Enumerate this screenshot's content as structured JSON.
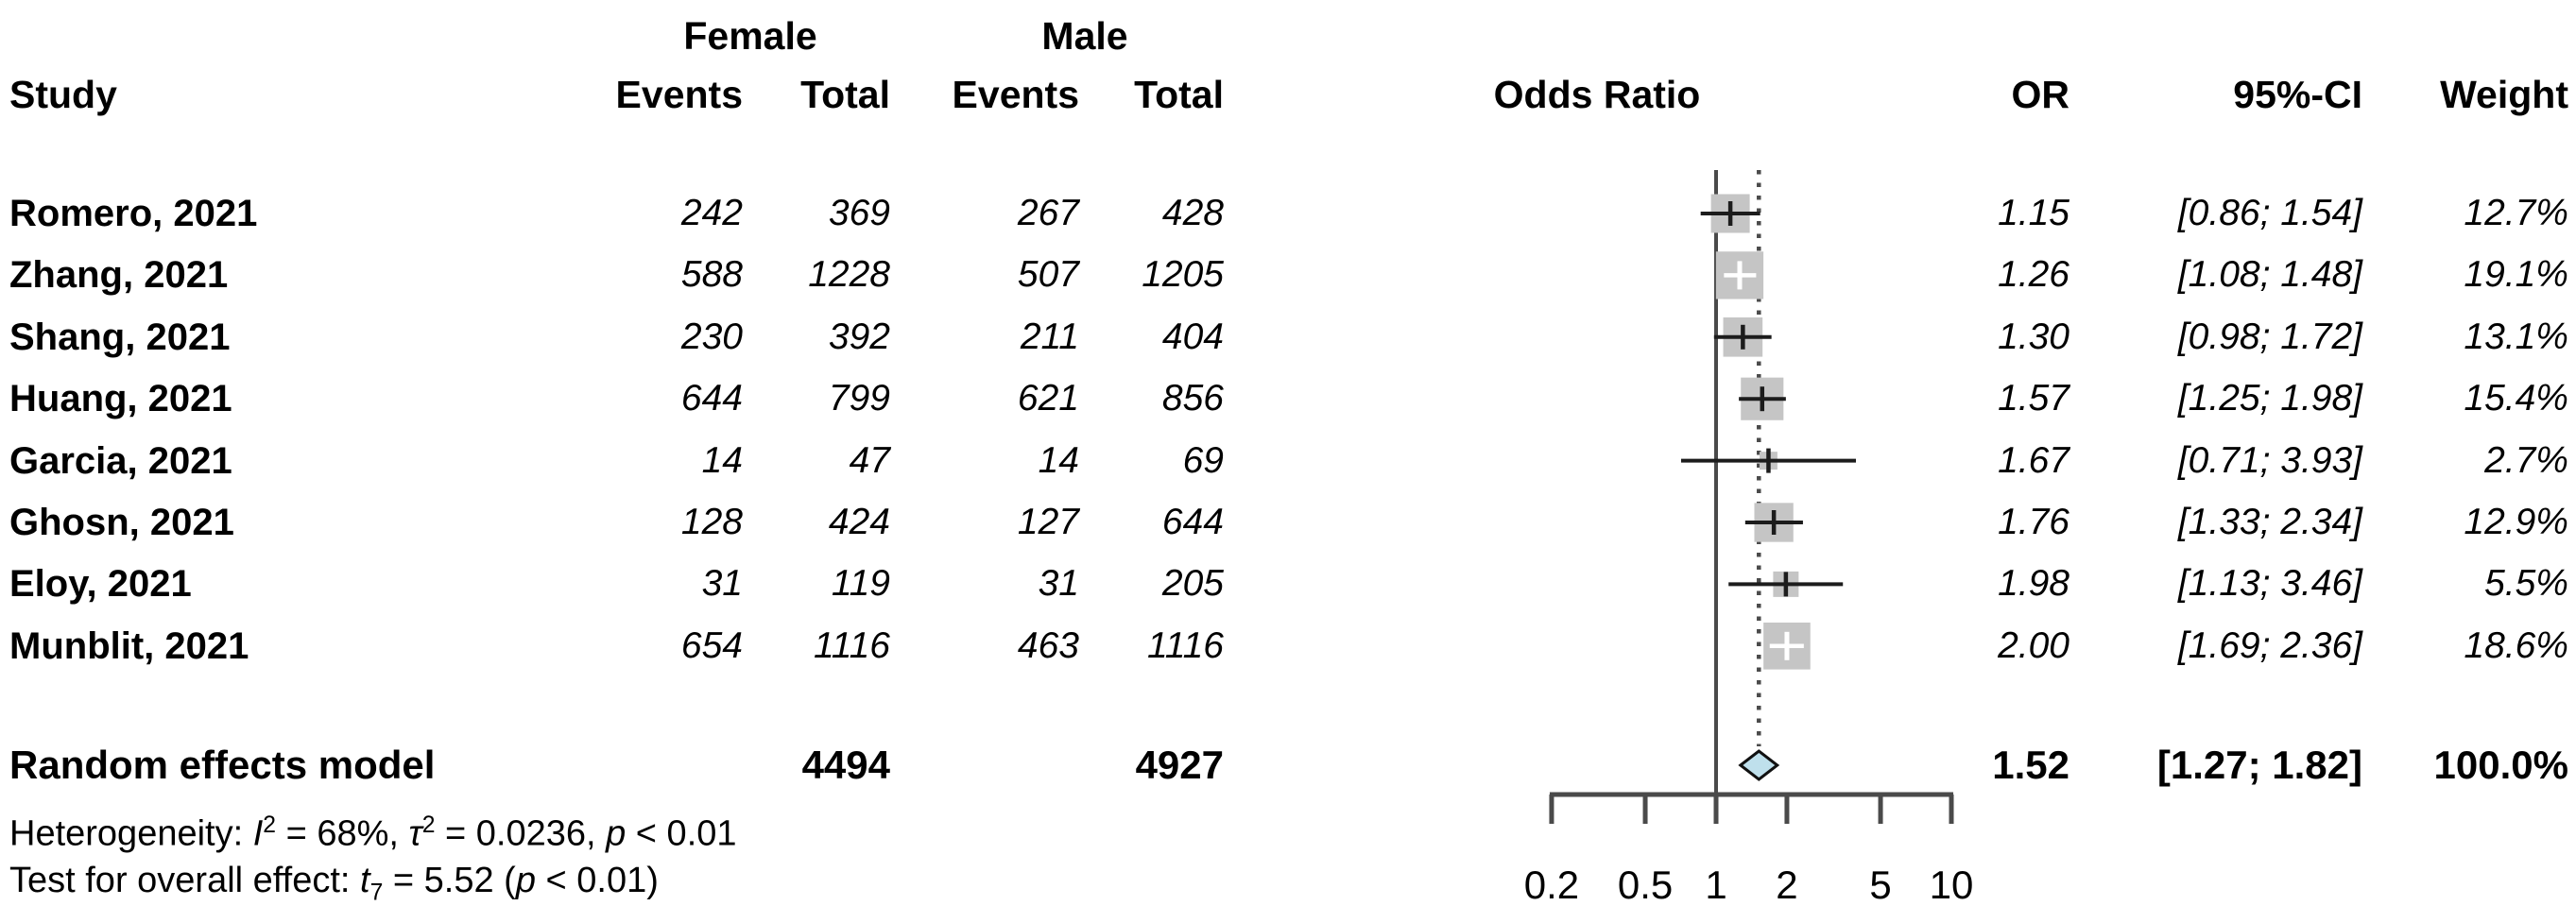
{
  "header": {
    "study": "Study",
    "group_female": "Female",
    "group_male": "Male",
    "events": "Events",
    "total": "Total",
    "plot_title": "Odds Ratio",
    "or": "OR",
    "ci": "95%-CI",
    "weight": "Weight"
  },
  "table": {
    "rows": [
      {
        "name": "Romero, 2021",
        "f_events": "242",
        "f_total": "369",
        "m_events": "267",
        "m_total": "428",
        "or": "1.15",
        "ci": "[0.86; 1.54]",
        "weight": "12.7%"
      },
      {
        "name": "Zhang, 2021",
        "f_events": "588",
        "f_total": "1228",
        "m_events": "507",
        "m_total": "1205",
        "or": "1.26",
        "ci": "[1.08; 1.48]",
        "weight": "19.1%"
      },
      {
        "name": "Shang, 2021",
        "f_events": "230",
        "f_total": "392",
        "m_events": "211",
        "m_total": "404",
        "or": "1.30",
        "ci": "[0.98; 1.72]",
        "weight": "13.1%"
      },
      {
        "name": "Huang, 2021",
        "f_events": "644",
        "f_total": "799",
        "m_events": "621",
        "m_total": "856",
        "or": "1.57",
        "ci": "[1.25; 1.98]",
        "weight": "15.4%"
      },
      {
        "name": "Garcia, 2021",
        "f_events": "14",
        "f_total": "47",
        "m_events": "14",
        "m_total": "69",
        "or": "1.67",
        "ci": "[0.71; 3.93]",
        "weight": "2.7%"
      },
      {
        "name": "Ghosn, 2021",
        "f_events": "128",
        "f_total": "424",
        "m_events": "127",
        "m_total": "644",
        "or": "1.76",
        "ci": "[1.33; 2.34]",
        "weight": "12.9%"
      },
      {
        "name": "Eloy, 2021",
        "f_events": "31",
        "f_total": "119",
        "m_events": "31",
        "m_total": "205",
        "or": "1.98",
        "ci": "[1.13; 3.46]",
        "weight": "5.5%"
      },
      {
        "name": "Munblit, 2021",
        "f_events": "654",
        "f_total": "1116",
        "m_events": "463",
        "m_total": "1116",
        "or": "2.00",
        "ci": "[1.69; 2.36]",
        "weight": "18.6%"
      }
    ]
  },
  "summary": {
    "label": "Random effects model",
    "f_total": "4494",
    "m_total": "4927",
    "or": "1.52",
    "ci": "[1.27; 1.82]",
    "weight": "100.0%"
  },
  "footnotes": {
    "het_prefix": "Heterogeneity: ",
    "het_i": "I",
    "het_i_sup": "2",
    "het_mid1": " = 68%, ",
    "het_tau": "τ",
    "het_tau_sup": "2",
    "het_mid2": " = 0.0236, ",
    "het_p": "p",
    "het_tail": " < 0.01",
    "test_prefix": "Test for overall effect: ",
    "test_t": "t",
    "test_t_sub": "7",
    "test_mid": " = 5.52 (",
    "test_p": "p",
    "test_tail": " < 0.01)"
  },
  "chart_data": {
    "type": "forest",
    "x_scale": "log",
    "xlim": [
      0.2,
      10
    ],
    "ticks": [
      0.2,
      0.5,
      1,
      2,
      5,
      10
    ],
    "tick_labels": [
      "0.2",
      "0.5",
      "1",
      "2",
      "5",
      "10"
    ],
    "reference_line": 1,
    "summary_line": 1.52,
    "studies": [
      {
        "name": "Romero, 2021",
        "or": 1.15,
        "lo": 0.86,
        "hi": 1.54,
        "weight": 12.7
      },
      {
        "name": "Zhang, 2021",
        "or": 1.26,
        "lo": 1.08,
        "hi": 1.48,
        "weight": 19.1
      },
      {
        "name": "Shang, 2021",
        "or": 1.3,
        "lo": 0.98,
        "hi": 1.72,
        "weight": 13.1
      },
      {
        "name": "Huang, 2021",
        "or": 1.57,
        "lo": 1.25,
        "hi": 1.98,
        "weight": 15.4
      },
      {
        "name": "Garcia, 2021",
        "or": 1.67,
        "lo": 0.71,
        "hi": 3.93,
        "weight": 2.7
      },
      {
        "name": "Ghosn, 2021",
        "or": 1.76,
        "lo": 1.33,
        "hi": 2.34,
        "weight": 12.9
      },
      {
        "name": "Eloy, 2021",
        "or": 1.98,
        "lo": 1.13,
        "hi": 3.46,
        "weight": 5.5
      },
      {
        "name": "Munblit, 2021",
        "or": 2.0,
        "lo": 1.69,
        "hi": 2.36,
        "weight": 18.6
      }
    ],
    "summary": {
      "or": 1.52,
      "lo": 1.27,
      "hi": 1.82,
      "weight": 100.0
    },
    "colors": {
      "square": "#c5c5c5",
      "ci_line": "#1c1c1c",
      "ci_line_inside": "#ffffff",
      "axis": "#4a4a4a",
      "diamond_fill": "#bfe0ec",
      "diamond_stroke": "#111111",
      "text": "#000000"
    }
  }
}
